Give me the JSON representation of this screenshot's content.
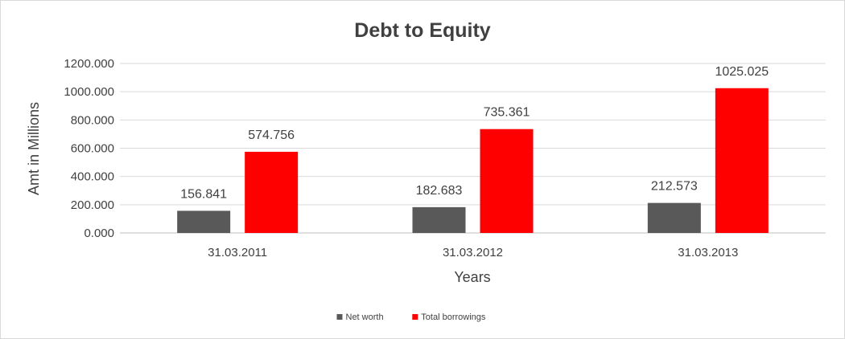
{
  "chart_data": {
    "type": "bar",
    "title": "Debt to Equity",
    "xlabel": "Years",
    "ylabel": "Amt in Millions",
    "categories": [
      "31.03.2011",
      "31.03.2012",
      "31.03.2013"
    ],
    "series": [
      {
        "name": "Net worth",
        "values": [
          156.841,
          182.683,
          212.573
        ],
        "value_labels": [
          "156.841",
          "182.683",
          "212.573"
        ],
        "color": "#595959"
      },
      {
        "name": "Total borrowings",
        "values": [
          574.756,
          735.361,
          1025.025
        ],
        "value_labels": [
          "574.756",
          "735.361",
          "1025.025"
        ],
        "color": "#ff0000"
      }
    ],
    "ylim": [
      0,
      1200
    ],
    "yticks": [
      0,
      200,
      400,
      600,
      800,
      1000,
      1200
    ],
    "ytick_labels": [
      "0.000",
      "200.000",
      "400.000",
      "600.000",
      "800.000",
      "1000.000",
      "1200.000"
    ],
    "grid": true,
    "legend_position": "bottom"
  }
}
